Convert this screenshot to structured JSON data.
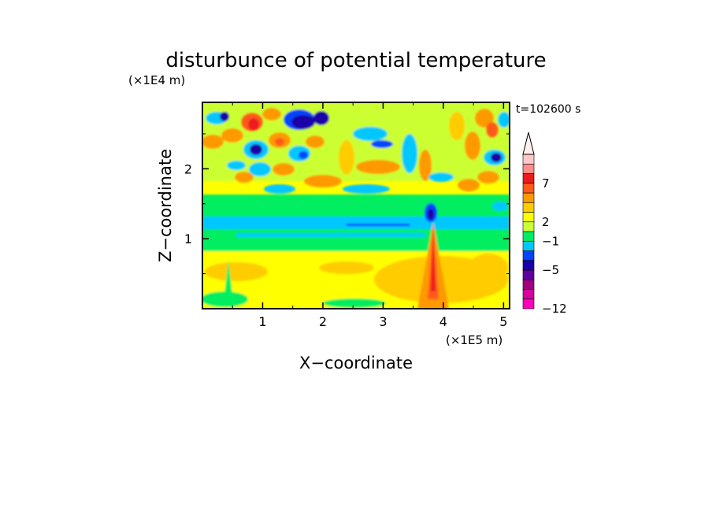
{
  "chart_data": {
    "type": "heatmap",
    "title": "disturbunce of potential temperature",
    "time_label": "t=102600 s",
    "xlabel": "X−coordinate",
    "ylabel": "Z−coordinate",
    "x_unit": "(×1E5 m)",
    "y_unit": "(×1E4 m)",
    "x_ticks": [
      "1",
      "2",
      "3",
      "4",
      "5"
    ],
    "y_ticks": [
      "1",
      "2"
    ],
    "xlim": [
      0,
      5.1
    ],
    "ylim": [
      0,
      2.95
    ],
    "colorbar": {
      "colors": [
        "#ff00bb",
        "#d4009f",
        "#a0007f",
        "#6000a0",
        "#1a00a8",
        "#0044ff",
        "#00c8ff",
        "#00ee60",
        "#ccff33",
        "#ffff00",
        "#ffcc00",
        "#ff9900",
        "#ff5a1a",
        "#ee1a1a",
        "#ff8c8c",
        "#ffc8c8",
        "#fff0f0"
      ],
      "tick_labels": [
        "−12",
        "−5",
        "−1",
        "2",
        "7"
      ]
    }
  }
}
